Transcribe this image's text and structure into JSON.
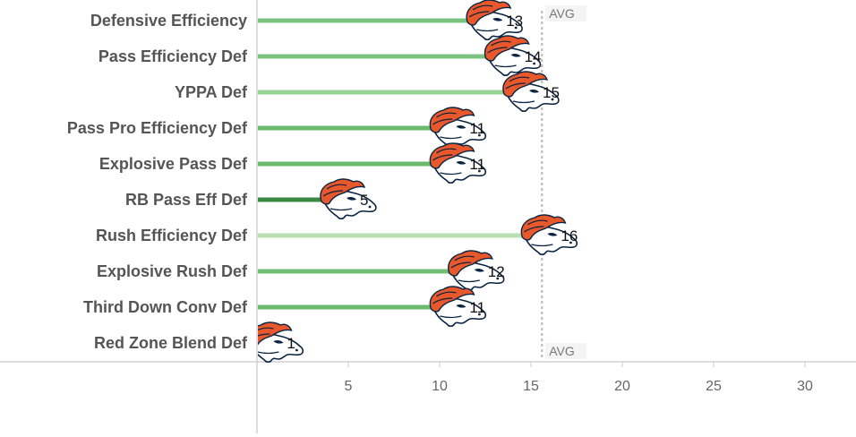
{
  "chart_data": {
    "type": "bar",
    "orientation": "horizontal",
    "categories": [
      "Defensive Efficiency",
      "Pass Efficiency Def",
      "YPPA Def",
      "Pass Pro Efficiency Def",
      "Explosive Pass Def",
      "RB Pass Eff Def",
      "Rush Efficiency Def",
      "Explosive Rush Def",
      "Third Down Conv Def",
      "Red Zone Blend Def"
    ],
    "values": [
      13,
      14,
      15,
      11,
      11,
      5,
      16,
      12,
      11,
      1
    ],
    "bar_colors": [
      "#7bc47f",
      "#7bc47f",
      "#98d494",
      "#6bba6e",
      "#6bba6e",
      "#3a8a43",
      "#b9e0b1",
      "#72be75",
      "#6bba6e",
      "#2f7d3a"
    ],
    "marker_icon": "broncos-logo-icon",
    "x_ticks": [
      5,
      10,
      15,
      20,
      25,
      30
    ],
    "xlim": [
      0,
      33.5
    ],
    "reference_line": {
      "label": "AVG",
      "value": 15.6
    },
    "title": "",
    "xlabel": "",
    "ylabel": "",
    "grid": false,
    "legend": "none"
  }
}
